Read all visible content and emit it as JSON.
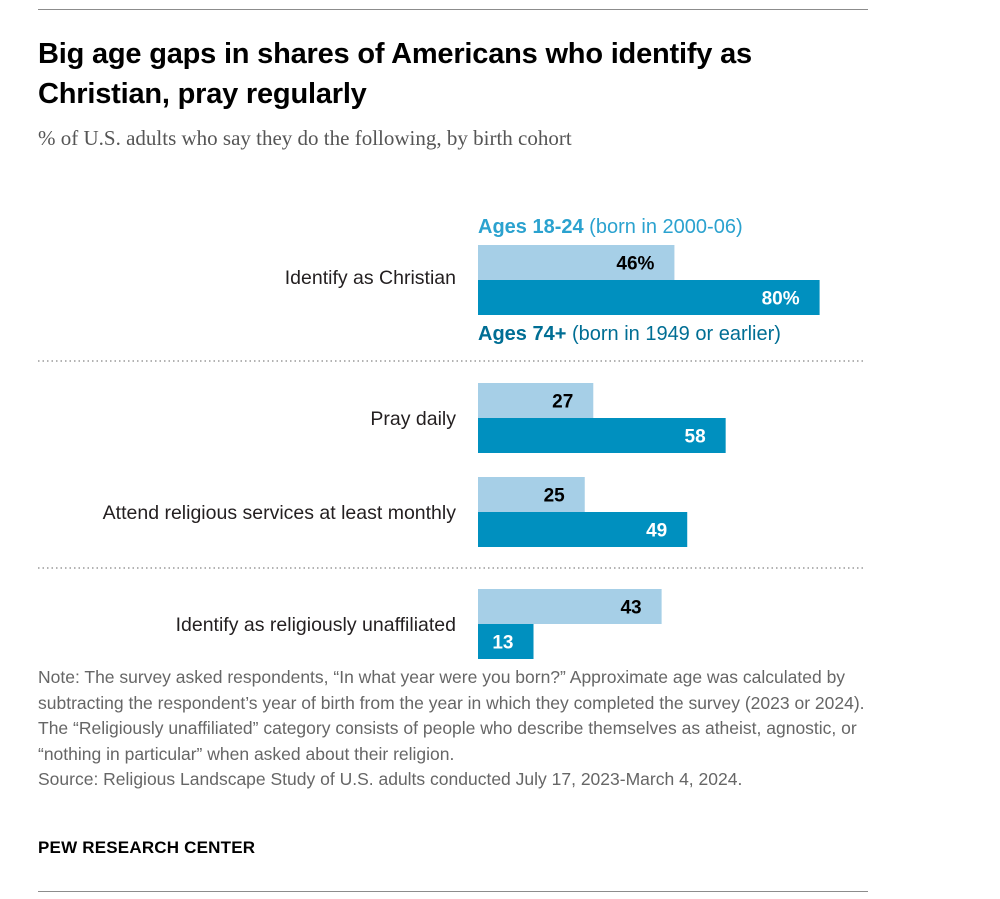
{
  "title": "Big age gaps in shares of Americans who identify as Christian, pray regularly",
  "subtitle": "% of U.S. adults who say they do the following, by birth cohort",
  "colors": {
    "young": "#a6cfe7",
    "old": "#0090bf",
    "young_label": "#2ba2cf",
    "old_label": "#006e94"
  },
  "chart_data": {
    "type": "bar",
    "orientation": "horizontal",
    "xlim": [
      0,
      100
    ],
    "categories": [
      "Identify as Christian",
      "Pray daily",
      "Attend religious services at least monthly",
      "Identify as religiously unaffiliated"
    ],
    "series": [
      {
        "key": "young",
        "name_bold": "Ages 18-24",
        "name_rest": " (born in 2000-06)",
        "values": [
          46,
          27,
          25,
          43
        ],
        "labels": [
          "46%",
          "27",
          "25",
          "43"
        ]
      },
      {
        "key": "old",
        "name_bold": "Ages 74+",
        "name_rest": " (born in 1949 or earlier)",
        "values": [
          80,
          58,
          49,
          13
        ],
        "labels": [
          "80%",
          "58",
          "49",
          "13"
        ]
      }
    ],
    "grid": false,
    "legend": "inline-top-group"
  },
  "note": "Note: The survey asked respondents, “In what year were you born?” Approximate age was calculated by subtracting the respondent’s year of birth from the year in which they completed the survey (2023 or 2024). The “Religiously unaffiliated” category consists of people who describe themselves as atheist, agnostic, or “nothing in particular” when asked about their religion.",
  "source": "Source: Religious Landscape Study of U.S. adults conducted July 17, 2023-March 4, 2024.",
  "footer": "PEW RESEARCH CENTER"
}
